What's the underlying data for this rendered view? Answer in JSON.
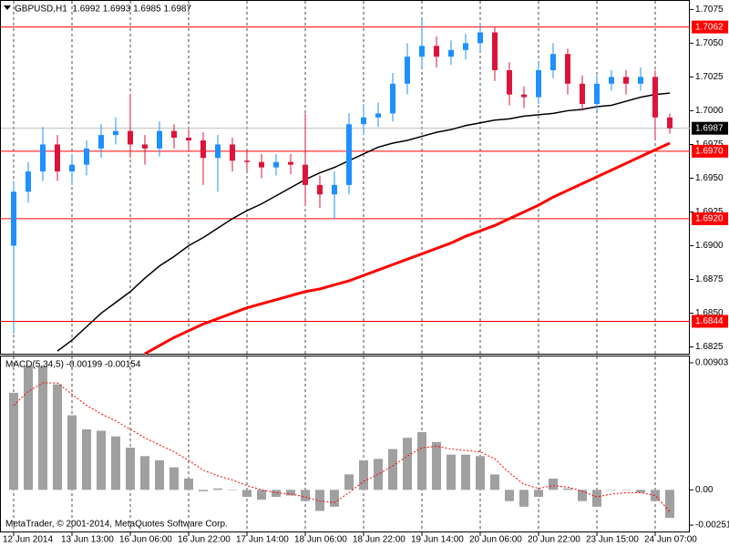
{
  "chart_data": [
    {
      "type": "candlestick",
      "title": "GBPUSD,H1  1.6992 1.6993 1.6985 1.6987",
      "categories": [
        "12 Jun 2014",
        null,
        null,
        null,
        "13 Jun 13:00",
        null,
        null,
        null,
        "16 Jun 06:00",
        null,
        null,
        null,
        "16 Jun 22:00",
        null,
        null,
        null,
        "17 Jun 14:00",
        null,
        null,
        null,
        "18 Jun 06:00",
        null,
        null,
        null,
        "18 Jun 22:00",
        null,
        null,
        null,
        "19 Jun 14:00",
        null,
        null,
        null,
        "20 Jun 06:00",
        null,
        null,
        null,
        "20 Jun 22:00",
        null,
        null,
        null,
        "23 Jun 15:00",
        null,
        null,
        null,
        "24 Jun 07:00",
        null
      ],
      "open": [
        1.69,
        1.694,
        1.6955,
        1.6975,
        1.6955,
        1.696,
        1.6972,
        1.6982,
        1.6985,
        1.6975,
        1.6972,
        1.6985,
        1.698,
        1.6978,
        1.6965,
        1.6975,
        1.6963,
        1.6962,
        1.6958,
        1.6962,
        1.696,
        1.6945,
        1.6938,
        1.6945,
        1.699,
        1.6995,
        1.6998,
        1.702,
        1.704,
        1.7048,
        1.704,
        1.7045,
        1.705,
        1.7058,
        1.703,
        1.7012,
        1.701,
        1.703,
        1.7042,
        1.702,
        1.7005,
        1.702,
        1.7025,
        1.702,
        1.7025,
        1.6995
      ],
      "high": [
        1.6948,
        1.6962,
        1.6988,
        1.6982,
        1.6968,
        1.6978,
        1.699,
        1.6995,
        1.7012,
        1.6982,
        1.6992,
        1.699,
        1.6986,
        1.6984,
        1.6982,
        1.698,
        1.697,
        1.6968,
        1.6968,
        1.6968,
        1.6998,
        1.6952,
        1.6955,
        1.6998,
        1.7005,
        1.7006,
        1.7028,
        1.705,
        1.7068,
        1.7055,
        1.7052,
        1.7057,
        1.7065,
        1.7062,
        1.7036,
        1.7018,
        1.7036,
        1.705,
        1.7046,
        1.7026,
        1.7026,
        1.703,
        1.703,
        1.7032,
        1.703,
        1.6998
      ],
      "low": [
        1.6835,
        1.6932,
        1.6948,
        1.6948,
        1.6945,
        1.6952,
        1.6965,
        1.6975,
        1.6965,
        1.696,
        1.6966,
        1.6972,
        1.697,
        1.6945,
        1.694,
        1.6955,
        1.6955,
        1.695,
        1.6952,
        1.6953,
        1.693,
        1.6928,
        1.692,
        1.6938,
        1.6982,
        1.6988,
        1.6992,
        1.7012,
        1.7032,
        1.7032,
        1.7034,
        1.7038,
        1.7044,
        1.7022,
        1.7004,
        1.7002,
        1.7005,
        1.7024,
        1.7012,
        1.7,
        1.7,
        1.7015,
        1.7012,
        1.7015,
        1.6978,
        1.6983
      ],
      "close": [
        1.694,
        1.6955,
        1.6975,
        1.6955,
        1.696,
        1.6972,
        1.6982,
        1.6985,
        1.6975,
        1.6972,
        1.6985,
        1.698,
        1.6978,
        1.6965,
        1.6975,
        1.6963,
        1.6962,
        1.6958,
        1.6962,
        1.696,
        1.6945,
        1.6938,
        1.6945,
        1.699,
        1.6995,
        1.6998,
        1.702,
        1.704,
        1.7048,
        1.704,
        1.7045,
        1.705,
        1.7058,
        1.703,
        1.7012,
        1.701,
        1.703,
        1.7042,
        1.702,
        1.7005,
        1.702,
        1.7025,
        1.702,
        1.7025,
        1.6995,
        1.6987
      ],
      "up_color": "#1e90ff",
      "down_color": "#dc143c",
      "series": [
        {
          "color": "#000000",
          "values": [
            null,
            null,
            null,
            1.6822,
            1.683,
            1.684,
            1.685,
            1.6858,
            1.6866,
            1.6876,
            1.6885,
            1.6892,
            1.69,
            1.6906,
            1.6913,
            1.692,
            1.6926,
            1.6931,
            1.6937,
            1.6943,
            1.6949,
            1.6954,
            1.6958,
            1.6963,
            1.6968,
            1.6973,
            1.6976,
            1.6978,
            1.6981,
            1.6984,
            1.6986,
            1.6989,
            1.6991,
            1.6993,
            1.6994,
            1.6996,
            1.6997,
            1.6998,
            1.7,
            1.7001,
            1.7003,
            1.7004,
            1.7007,
            1.701,
            1.7012,
            1.7013
          ]
        },
        {
          "color": "#ff0000",
          "values": [
            null,
            null,
            null,
            null,
            null,
            null,
            null,
            null,
            null,
            1.682,
            1.6826,
            1.6832,
            1.6837,
            1.6842,
            1.6846,
            1.685,
            1.6854,
            1.6857,
            1.686,
            1.6863,
            1.6866,
            1.6868,
            1.6871,
            1.6874,
            1.6878,
            1.6882,
            1.6886,
            1.689,
            1.6894,
            1.6898,
            1.6902,
            1.6907,
            1.6911,
            1.6915,
            1.692,
            1.6925,
            1.693,
            1.6936,
            1.6941,
            1.6946,
            1.6951,
            1.6956,
            1.6961,
            1.6966,
            1.6971,
            1.6976
          ]
        }
      ],
      "levels": [
        1.7062,
        {
          "value": 1.697,
          "label": "1.6970"
        },
        {
          "value": 1.692,
          "label": "1.6920"
        },
        1.6844
      ],
      "level_color": "#ff0000",
      "current_price": 1.6987,
      "ylim": [
        1.682,
        1.7082
      ],
      "yticks": [
        1.7075,
        {
          "value": 1.705,
          "label": "1.7050"
        },
        1.7025,
        {
          "value": 1.7,
          "label": "1.7000"
        },
        1.6975,
        {
          "value": 1.695,
          "label": "1.6950"
        },
        1.6925,
        {
          "value": 1.69,
          "label": "1.6900"
        },
        1.6875,
        {
          "value": 1.685,
          "label": "1.6850"
        },
        1.6825
      ]
    },
    {
      "type": "macd",
      "title": "MACD(5,34,5) -0.00199 -0.00154",
      "values": [
        0.0069,
        0.0088,
        0.0088,
        0.0075,
        0.0053,
        0.0043,
        0.0042,
        0.0038,
        0.003,
        0.0024,
        0.0021,
        0.0016,
        0.0008,
        -0.0001,
        0.0001,
        0,
        -0.0005,
        -0.0007,
        -0.0005,
        -0.0004,
        -0.0008,
        -0.0015,
        -0.0012,
        0.0011,
        0.0021,
        0.0022,
        0.0029,
        0.0037,
        0.0041,
        0.0034,
        0.0025,
        0.0025,
        0.0024,
        0.0011,
        -0.0008,
        -0.0012,
        -0.0005,
        0.0008,
        0.0001,
        -0.0008,
        -0.0012,
        0,
        0,
        -0.0002,
        -0.0008,
        -0.00199
      ],
      "signal": [
        0.006,
        0.007,
        0.0076,
        0.0076,
        0.0068,
        0.006,
        0.0054,
        0.0049,
        0.0043,
        0.0037,
        0.0032,
        0.0027,
        0.0021,
        0.0014,
        0.001,
        0.0007,
        0.0003,
        0.0,
        -0.0002,
        -0.0003,
        -0.0005,
        -0.0008,
        -0.0009,
        -0.0002,
        0.0006,
        0.0011,
        0.0017,
        0.0024,
        0.003,
        0.0031,
        0.0029,
        0.0028,
        0.0027,
        0.0022,
        0.0012,
        0.0004,
        0.0001,
        0.0003,
        0.0002,
        -0.0001,
        -0.0005,
        -0.0003,
        -0.0002,
        -0.0002,
        -0.0004,
        -0.00154
      ],
      "color": "#a0a0a0",
      "signal_color": "#ff0000",
      "ylim": [
        -0.00296,
        0.00948
      ],
      "yticks": [
        0.00903,
        {
          "value": 0,
          "label": "0.00"
        },
        -0.00251
      ]
    }
  ],
  "footer": "MetaTrader, © 2001-2014, MetaQuotes Software Corp."
}
